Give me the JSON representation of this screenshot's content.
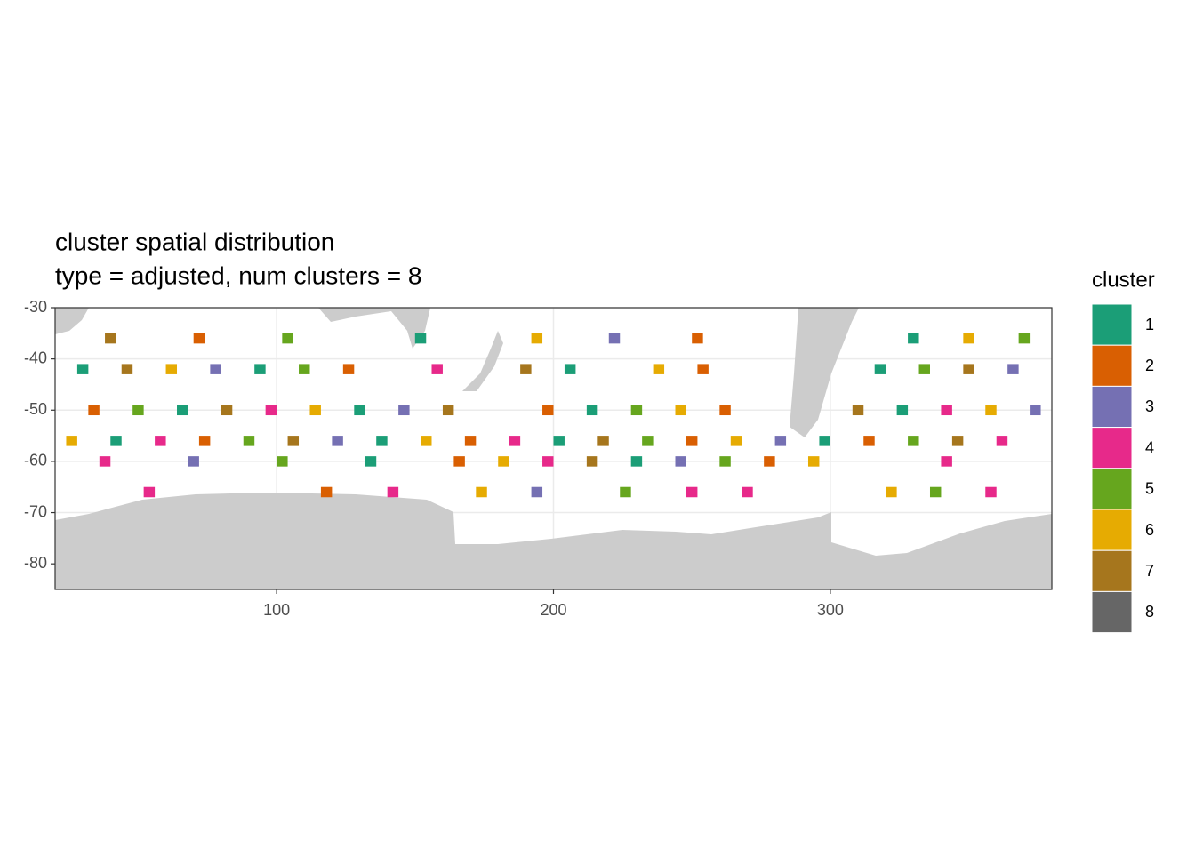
{
  "chart_data": {
    "type": "raster",
    "title": "cluster spatial distribution",
    "subtitle": "type = adjusted, num clusters = 8",
    "x": [
      30,
      46,
      62,
      78,
      94,
      110,
      126,
      158,
      190,
      206,
      238,
      254,
      318,
      334,
      350,
      366,
      34,
      50,
      66,
      82,
      98,
      114,
      130,
      146,
      162,
      198,
      214,
      230,
      246,
      262,
      310,
      326,
      342,
      358,
      374,
      26,
      42,
      58,
      74,
      90,
      106,
      122,
      138,
      154,
      170,
      186,
      202,
      218,
      234,
      250,
      266,
      282,
      298,
      314,
      330,
      346,
      362,
      38,
      70,
      102,
      134,
      166,
      182,
      198,
      214,
      230,
      246,
      262,
      278,
      294,
      342,
      54,
      118,
      142,
      174,
      194,
      226,
      250,
      270,
      322,
      338,
      358,
      40,
      72,
      104,
      152,
      194,
      222,
      252,
      330,
      350,
      370
    ],
    "y": [
      -42,
      -42,
      -42,
      -42,
      -42,
      -42,
      -42,
      -42,
      -42,
      -42,
      -42,
      -42,
      -42,
      -42,
      -42,
      -42,
      -50,
      -50,
      -50,
      -50,
      -50,
      -50,
      -50,
      -50,
      -50,
      -50,
      -50,
      -50,
      -50,
      -50,
      -50,
      -50,
      -50,
      -50,
      -50,
      -56,
      -56,
      -56,
      -56,
      -56,
      -56,
      -56,
      -56,
      -56,
      -56,
      -56,
      -56,
      -56,
      -56,
      -56,
      -56,
      -56,
      -56,
      -56,
      -56,
      -56,
      -56,
      -60,
      -60,
      -60,
      -60,
      -60,
      -60,
      -60,
      -60,
      -60,
      -60,
      -60,
      -60,
      -60,
      -60,
      -66,
      -66,
      -66,
      -66,
      -66,
      -66,
      -66,
      -66,
      -66,
      -66,
      -66,
      -36,
      -36,
      -36,
      -36,
      -36,
      -36,
      -36,
      -36,
      -36,
      -36
    ],
    "values": [
      1,
      7,
      6,
      3,
      1,
      5,
      2,
      4,
      7,
      1,
      6,
      2,
      1,
      5,
      7,
      3,
      2,
      5,
      1,
      7,
      4,
      6,
      1,
      3,
      7,
      2,
      1,
      5,
      6,
      2,
      7,
      1,
      4,
      6,
      3,
      6,
      1,
      4,
      2,
      5,
      7,
      3,
      1,
      6,
      2,
      4,
      1,
      7,
      5,
      2,
      6,
      3,
      1,
      2,
      5,
      7,
      4,
      4,
      3,
      5,
      1,
      2,
      6,
      4,
      7,
      1,
      3,
      5,
      2,
      6,
      4,
      4,
      2,
      4,
      6,
      3,
      5,
      4,
      4,
      6,
      5,
      4,
      7,
      2,
      5,
      1,
      6,
      3,
      2,
      1,
      6,
      5
    ],
    "cell_size": [
      4,
      2
    ],
    "legend": {
      "title": "cluster",
      "entries": [
        {
          "name": "1",
          "color": "#1B9E77"
        },
        {
          "name": "2",
          "color": "#D95F02"
        },
        {
          "name": "3",
          "color": "#7570B3"
        },
        {
          "name": "4",
          "color": "#E7298A"
        },
        {
          "name": "5",
          "color": "#66A61E"
        },
        {
          "name": "6",
          "color": "#E6AB02"
        },
        {
          "name": "7",
          "color": "#A6761D"
        },
        {
          "name": "8",
          "color": "#666666"
        }
      ]
    },
    "xlim": [
      20,
      380
    ],
    "ylim": [
      -85,
      -30
    ],
    "xticks": [
      100,
      200,
      300
    ],
    "yticks": [
      -30,
      -40,
      -50,
      -60,
      -70,
      -80
    ],
    "grid": true
  }
}
